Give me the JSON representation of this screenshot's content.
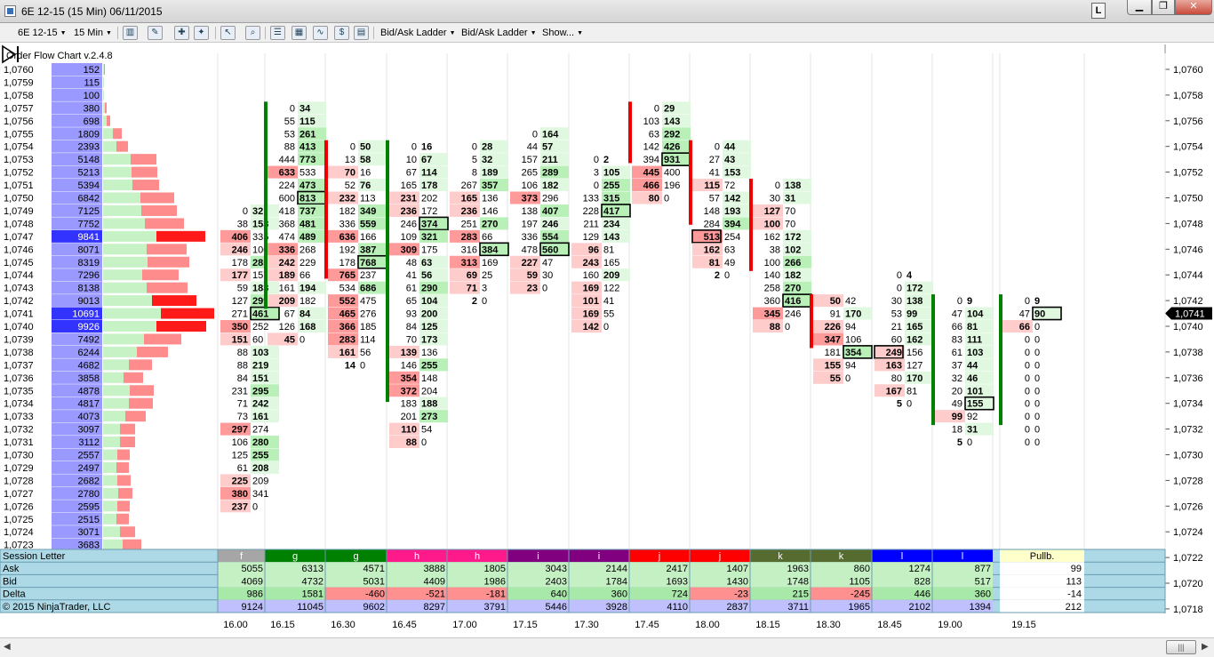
{
  "window": {
    "title": "6E 12-15 (15 Min)  06/11/2015",
    "lock_label": "L"
  },
  "toolbar": {
    "instrument": "6E 12-15",
    "interval": "15 Min",
    "ladder1": "Bid/Ask Ladder",
    "ladder2": "Bid/Ask Ladder",
    "show": "Show..."
  },
  "indicator_label": "Order Flow Chart v.2.4.8",
  "copyright": "© 2015 NinjaTrader, LLC",
  "price_axis": [
    "1,0760",
    "1,0758",
    "1,0756",
    "1,0754",
    "1,0752",
    "1,0750",
    "1,0748",
    "1,0746",
    "1,0744",
    "1,0742",
    "1,0740",
    "1,0738",
    "1,0736",
    "1,0734",
    "1,0732",
    "1,0730",
    "1,0728",
    "1,0726",
    "1,0724",
    "1,0722",
    "1,0720",
    "1,0718"
  ],
  "current_price": "1,0741",
  "profile": {
    "rows": [
      [
        "1,0760",
        "152"
      ],
      [
        "1,0759",
        "115"
      ],
      [
        "1,0758",
        "100"
      ],
      [
        "1,0757",
        "380"
      ],
      [
        "1,0756",
        "698"
      ],
      [
        "1,0755",
        "1809"
      ],
      [
        "1,0754",
        "2393"
      ],
      [
        "1,0753",
        "5148"
      ],
      [
        "1,0752",
        "5213"
      ],
      [
        "1,0751",
        "5394"
      ],
      [
        "1,0750",
        "6842"
      ],
      [
        "1,0749",
        "7125"
      ],
      [
        "1,0748",
        "7752"
      ],
      [
        "1,0747",
        "9841"
      ],
      [
        "1,0746",
        "8071"
      ],
      [
        "1,0745",
        "8319"
      ],
      [
        "1,0744",
        "7296"
      ],
      [
        "1,0743",
        "8138"
      ],
      [
        "1,0742",
        "9013"
      ],
      [
        "1,0741",
        "10691"
      ],
      [
        "1,0740",
        "9926"
      ],
      [
        "1,0739",
        "7492"
      ],
      [
        "1,0738",
        "6244"
      ],
      [
        "1,0737",
        "4682"
      ],
      [
        "1,0736",
        "3858"
      ],
      [
        "1,0735",
        "4878"
      ],
      [
        "1,0734",
        "4817"
      ],
      [
        "1,0733",
        "4073"
      ],
      [
        "1,0732",
        "3097"
      ],
      [
        "1,0731",
        "3112"
      ],
      [
        "1,0730",
        "2557"
      ],
      [
        "1,0729",
        "2497"
      ],
      [
        "1,0728",
        "2682"
      ],
      [
        "1,0727",
        "2780"
      ],
      [
        "1,0726",
        "2595"
      ],
      [
        "1,0725",
        "2515"
      ],
      [
        "1,0724",
        "3071"
      ],
      [
        "1,0723",
        "3683"
      ]
    ]
  },
  "bars": [
    {
      "time": "16.00",
      "top": "1,0749",
      "dir": "",
      "rows": [
        [
          "0",
          "32"
        ],
        [
          "38",
          "153"
        ],
        [
          "406",
          "335"
        ],
        [
          "246",
          "100"
        ],
        [
          "178",
          "285"
        ],
        [
          "177",
          "157"
        ],
        [
          "59",
          "183"
        ],
        [
          "127",
          "299"
        ],
        [
          "271",
          "461"
        ],
        [
          "350",
          "252"
        ],
        [
          "151",
          "60"
        ],
        [
          "88",
          "103"
        ],
        [
          "88",
          "219"
        ],
        [
          "84",
          "151"
        ],
        [
          "231",
          "295"
        ],
        [
          "71",
          "242"
        ],
        [
          "73",
          "161"
        ],
        [
          "297",
          "274"
        ],
        [
          "106",
          "280"
        ],
        [
          "125",
          "255"
        ],
        [
          "61",
          "208"
        ],
        [
          "225",
          "209"
        ],
        [
          "380",
          "341"
        ],
        [
          "237",
          "0"
        ]
      ]
    },
    {
      "time": "16.15",
      "top": "1,0757",
      "dir": "up",
      "rows": [
        [
          "0",
          "34"
        ],
        [
          "55",
          "115"
        ],
        [
          "53",
          "261"
        ],
        [
          "88",
          "413"
        ],
        [
          "444",
          "773"
        ],
        [
          "633",
          "533"
        ],
        [
          "224",
          "473"
        ],
        [
          "600",
          "813"
        ],
        [
          "418",
          "737"
        ],
        [
          "368",
          "481"
        ],
        [
          "474",
          "489"
        ],
        [
          "336",
          "268"
        ],
        [
          "242",
          "229"
        ],
        [
          "189",
          "66"
        ],
        [
          "161",
          "194"
        ],
        [
          "209",
          "182"
        ],
        [
          "67",
          "84"
        ],
        [
          "126",
          "168"
        ],
        [
          "45",
          "0"
        ]
      ]
    },
    {
      "time": "16.30",
      "top": "1,0754",
      "dir": "down",
      "rows": [
        [
          "0",
          "50"
        ],
        [
          "13",
          "58"
        ],
        [
          "70",
          "16"
        ],
        [
          "52",
          "76"
        ],
        [
          "232",
          "113"
        ],
        [
          "182",
          "349"
        ],
        [
          "336",
          "559"
        ],
        [
          "636",
          "166"
        ],
        [
          "192",
          "387"
        ],
        [
          "178",
          "768"
        ],
        [
          "765",
          "237"
        ],
        [
          "534",
          "686"
        ],
        [
          "552",
          "475"
        ],
        [
          "465",
          "276"
        ],
        [
          "366",
          "185"
        ],
        [
          "283",
          "114"
        ],
        [
          "161",
          "56"
        ],
        [
          "14",
          "0"
        ]
      ]
    },
    {
      "time": "16.45",
      "top": "1,0754",
      "dir": "up",
      "rows": [
        [
          "0",
          "16"
        ],
        [
          "10",
          "67"
        ],
        [
          "67",
          "114"
        ],
        [
          "165",
          "178"
        ],
        [
          "231",
          "202"
        ],
        [
          "236",
          "172"
        ],
        [
          "246",
          "374"
        ],
        [
          "109",
          "321"
        ],
        [
          "309",
          "175"
        ],
        [
          "48",
          "63"
        ],
        [
          "41",
          "56"
        ],
        [
          "61",
          "290"
        ],
        [
          "65",
          "104"
        ],
        [
          "93",
          "200"
        ],
        [
          "84",
          "125"
        ],
        [
          "70",
          "173"
        ],
        [
          "139",
          "136"
        ],
        [
          "146",
          "255"
        ],
        [
          "354",
          "148"
        ],
        [
          "372",
          "204"
        ],
        [
          "183",
          "188"
        ],
        [
          "201",
          "273"
        ],
        [
          "110",
          "54"
        ],
        [
          "88",
          "0"
        ]
      ]
    },
    {
      "time": "17.00",
      "top": "1,0754",
      "dir": "",
      "rows": [
        [
          "0",
          "28"
        ],
        [
          "5",
          "32"
        ],
        [
          "8",
          "189"
        ],
        [
          "267",
          "357"
        ],
        [
          "165",
          "136"
        ],
        [
          "236",
          "146"
        ],
        [
          "251",
          "270"
        ],
        [
          "283",
          "66"
        ],
        [
          "316",
          "384"
        ],
        [
          "313",
          "169"
        ],
        [
          "69",
          "25"
        ],
        [
          "71",
          "3"
        ],
        [
          "2",
          "0"
        ]
      ]
    },
    {
      "time": "17.15",
      "top": "1,0755",
      "dir": "",
      "rows": [
        [
          "0",
          "164"
        ],
        [
          "44",
          "57"
        ],
        [
          "157",
          "211"
        ],
        [
          "265",
          "289"
        ],
        [
          "106",
          "182"
        ],
        [
          "373",
          "296"
        ],
        [
          "138",
          "407"
        ],
        [
          "197",
          "246"
        ],
        [
          "336",
          "554"
        ],
        [
          "478",
          "560"
        ],
        [
          "227",
          "47"
        ],
        [
          "59",
          "30"
        ],
        [
          "23",
          "0"
        ]
      ]
    },
    {
      "time": "17.30",
      "top": "1,0753",
      "dir": "",
      "rows": [
        [
          "0",
          "2"
        ],
        [
          "3",
          "105"
        ],
        [
          "0",
          "255"
        ],
        [
          "133",
          "315"
        ],
        [
          "228",
          "417"
        ],
        [
          "211",
          "234"
        ],
        [
          "129",
          "143"
        ],
        [
          "96",
          "81"
        ],
        [
          "243",
          "165"
        ],
        [
          "160",
          "209"
        ],
        [
          "169",
          "122"
        ],
        [
          "101",
          "41"
        ],
        [
          "169",
          "55"
        ],
        [
          "142",
          "0"
        ]
      ]
    },
    {
      "time": "17.45",
      "top": "1,0757",
      "dir": "down",
      "rows": [
        [
          "0",
          "29"
        ],
        [
          "103",
          "143"
        ],
        [
          "63",
          "292"
        ],
        [
          "142",
          "426"
        ],
        [
          "394",
          "931"
        ],
        [
          "445",
          "400"
        ],
        [
          "466",
          "196"
        ],
        [
          "80",
          "0"
        ]
      ]
    },
    {
      "time": "18.00",
      "top": "1,0754",
      "dir": "down",
      "rows": [
        [
          "0",
          "44"
        ],
        [
          "27",
          "43"
        ],
        [
          "41",
          "153"
        ],
        [
          "115",
          "72"
        ],
        [
          "57",
          "142"
        ],
        [
          "148",
          "193"
        ],
        [
          "284",
          "394"
        ],
        [
          "513",
          "254"
        ],
        [
          "162",
          "63"
        ],
        [
          "81",
          "49"
        ],
        [
          "2",
          "0"
        ]
      ]
    },
    {
      "time": "18.15",
      "top": "1,0751",
      "dir": "down",
      "rows": [
        [
          "0",
          "138"
        ],
        [
          "30",
          "31"
        ],
        [
          "127",
          "70"
        ],
        [
          "100",
          "70"
        ],
        [
          "162",
          "172"
        ],
        [
          "38",
          "102"
        ],
        [
          "100",
          "266"
        ],
        [
          "140",
          "182"
        ],
        [
          "258",
          "270"
        ],
        [
          "360",
          "416"
        ],
        [
          "345",
          "246"
        ],
        [
          "88",
          "0"
        ]
      ]
    },
    {
      "time": "18.30",
      "top": "1,0742",
      "dir": "down",
      "rows": [
        [
          "50",
          "42"
        ],
        [
          "91",
          "170"
        ],
        [
          "226",
          "94"
        ],
        [
          "347",
          "106"
        ],
        [
          "181",
          "354"
        ],
        [
          "155",
          "94"
        ],
        [
          "55",
          "0"
        ]
      ]
    },
    {
      "time": "18.45",
      "top": "1,0744",
      "dir": "",
      "rows": [
        [
          "0",
          "4"
        ],
        [
          "0",
          "172"
        ],
        [
          "30",
          "138"
        ],
        [
          "53",
          "99"
        ],
        [
          "21",
          "165"
        ],
        [
          "60",
          "162"
        ],
        [
          "249",
          "156"
        ],
        [
          "163",
          "127"
        ],
        [
          "80",
          "170"
        ],
        [
          "167",
          "81"
        ],
        [
          "5",
          "0"
        ]
      ]
    },
    {
      "time": "19.00",
      "top": "1,0742",
      "dir": "up",
      "rows": [
        [
          "0",
          "9"
        ],
        [
          "47",
          "104"
        ],
        [
          "66",
          "81"
        ],
        [
          "83",
          "111"
        ],
        [
          "61",
          "103"
        ],
        [
          "37",
          "44"
        ],
        [
          "32",
          "46"
        ],
        [
          "20",
          "101"
        ],
        [
          "49",
          "155"
        ],
        [
          "99",
          "92"
        ],
        [
          "18",
          "31"
        ],
        [
          "5",
          "0"
        ]
      ]
    },
    {
      "time": "19.15",
      "top": "1,0742",
      "dir": "up",
      "rows": [
        [
          "0",
          "9"
        ],
        [
          "47",
          "90"
        ],
        [
          "66",
          "0"
        ],
        [
          "0",
          "0"
        ],
        [
          "0",
          "0"
        ],
        [
          "0",
          "0"
        ],
        [
          "0",
          "0"
        ],
        [
          "0",
          "0"
        ],
        [
          "0",
          "0"
        ],
        [
          "0",
          "0"
        ],
        [
          "0",
          "0"
        ],
        [
          "0",
          "0"
        ]
      ]
    }
  ],
  "table": {
    "row_labels": [
      "Session Letter",
      "Ask",
      "Bid",
      "Delta",
      "Volume"
    ],
    "session_letters": [
      "f",
      "g",
      "g",
      "h",
      "h",
      "i",
      "i",
      "j",
      "j",
      "k",
      "k",
      "l",
      "l"
    ],
    "ask": [
      "5055",
      "6313",
      "4571",
      "3888",
      "1805",
      "3043",
      "2144",
      "2417",
      "1407",
      "1963",
      "860",
      "1274",
      "877"
    ],
    "bid": [
      "4069",
      "4732",
      "5031",
      "4409",
      "1986",
      "2403",
      "1784",
      "1693",
      "1430",
      "1748",
      "1105",
      "828",
      "517"
    ],
    "delta": [
      "986",
      "1581",
      "-460",
      "-521",
      "-181",
      "640",
      "360",
      "724",
      "-23",
      "215",
      "-245",
      "446",
      "360"
    ],
    "volume": [
      "9124",
      "11045",
      "9602",
      "8297",
      "3791",
      "5446",
      "3928",
      "4110",
      "2837",
      "3711",
      "1965",
      "2102",
      "1394"
    ],
    "pullback": {
      "label": "Pullb.",
      "ask": "99",
      "bid": "113",
      "delta": "-14",
      "volume": "212"
    }
  },
  "colors": {
    "session_f": "#a6a6a6",
    "session_g": "#008000",
    "session_h": "#ff1a8c",
    "session_i": "#800080",
    "session_j": "#ff0000",
    "session_k": "#556b2f",
    "session_l": "#0000ff",
    "pullb": "#ffffcc",
    "profile_bar": "#9999ff",
    "profile_bar_hi": "#3333ff",
    "delta_pos": "#90ee90",
    "delta_neg": "#ff0000"
  }
}
